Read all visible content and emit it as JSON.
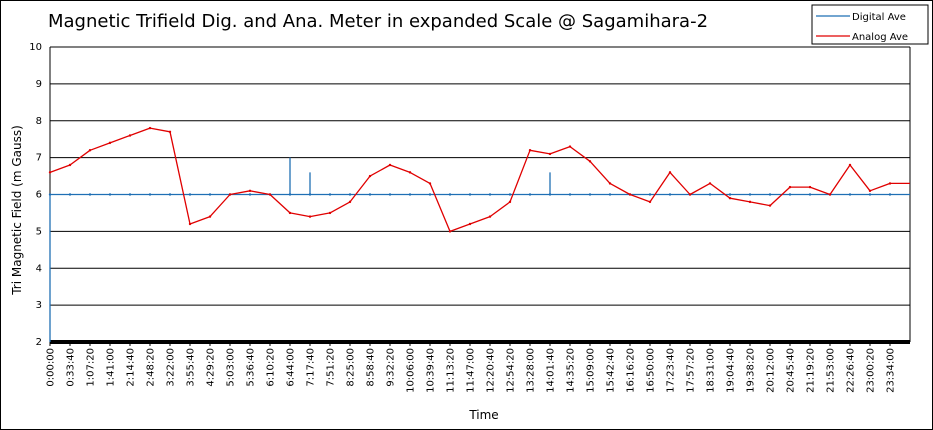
{
  "chart_data": {
    "type": "line",
    "title": "Magnetic Trifield Dig. and Ana. Meter in expanded Scale  @ Sagamihara-2",
    "xlabel": "Time",
    "ylabel": "Tri Magnetic Field (m Gauss)",
    "ylim": [
      2,
      10
    ],
    "yticks": [
      2,
      3,
      4,
      5,
      6,
      7,
      8,
      9,
      10
    ],
    "grid": "horizontal",
    "legend_position": "top-right",
    "categories": [
      "0:00:00",
      "0:33:40",
      "1:07:20",
      "1:41:00",
      "2:14:40",
      "2:48:20",
      "3:22:00",
      "3:55:40",
      "4:29:20",
      "5:03:00",
      "5:36:40",
      "6:10:20",
      "6:44:00",
      "7:17:40",
      "7:51:20",
      "8:25:00",
      "8:58:40",
      "9:32:20",
      "10:06:00",
      "10:39:40",
      "11:13:20",
      "11:47:00",
      "12:20:40",
      "12:54:20",
      "13:28:00",
      "14:01:40",
      "14:35:20",
      "15:09:00",
      "15:42:40",
      "16:16:20",
      "16:50:00",
      "17:23:40",
      "17:57:20",
      "18:31:00",
      "19:04:40",
      "19:38:20",
      "20:12:00",
      "20:45:40",
      "21:19:20",
      "21:53:00",
      "22:26:40",
      "23:00:20",
      "23:34:00"
    ],
    "x_tick_labels": [
      "0:00:00",
      "0:33:40",
      "1:07:20",
      "1:41:00",
      "2:14:40",
      "2:48:20",
      "3:22:00",
      "3:55:40",
      "4:29:20",
      "5:03:00",
      "5:36:40",
      "6:10:20",
      "6:44:00",
      "7:17:40",
      "7:51:20",
      "8:25:00",
      "8:58:40",
      "9:32:20",
      "10:06:00",
      "10:39:40",
      "11:13:20",
      "11:47:00",
      "12:20:40",
      "12:54:20",
      "13:28:00",
      "14:01:40",
      "14:35:20",
      "15:09:00",
      "15:42:40",
      "16:16:20",
      "16:50:00",
      "17:23:40",
      "17:57:20",
      "18:31:00",
      "19:04:40",
      "19:38:20",
      "20:12:00",
      "20:45:40",
      "21:19:20",
      "21:53:00",
      "22:26:40",
      "23:00:20",
      "23:34:00"
    ],
    "series": [
      {
        "name": "Digital Ave",
        "color": "#1f6fb4",
        "values": [
          6.0,
          6.0,
          6.0,
          6.0,
          6.0,
          6.0,
          6.0,
          6.0,
          6.0,
          6.0,
          6.0,
          6.0,
          6.0,
          6.0,
          6.0,
          6.0,
          6.0,
          6.0,
          6.0,
          6.0,
          6.0,
          6.0,
          6.0,
          6.0,
          6.0,
          6.0,
          6.0,
          6.0,
          6.0,
          6.0,
          6.0,
          6.0,
          6.0,
          6.0,
          6.0,
          6.0,
          6.0,
          6.0,
          6.0,
          6.0,
          6.0,
          6.0,
          6.0
        ],
        "spikes": [
          {
            "x": "0:00:00",
            "value": 2.0
          },
          {
            "x": "6:44:00",
            "value": 7.0
          },
          {
            "x": "7:17:40",
            "value": 6.6
          },
          {
            "x": "14:01:40",
            "value": 6.6
          }
        ]
      },
      {
        "name": "Analog Ave",
        "color": "#e00000",
        "values": [
          6.6,
          6.8,
          7.2,
          7.4,
          7.6,
          7.8,
          7.7,
          5.2,
          5.4,
          6.0,
          6.1,
          6.0,
          5.5,
          5.4,
          5.5,
          5.8,
          6.5,
          6.8,
          6.6,
          6.3,
          5.0,
          5.2,
          5.4,
          5.8,
          7.2,
          7.1,
          7.3,
          6.9,
          6.3,
          6.0,
          5.8,
          6.6,
          6.0,
          6.3,
          5.9,
          5.8,
          5.7,
          6.2,
          6.2,
          6.0,
          6.8,
          6.1,
          6.3
        ]
      }
    ]
  }
}
